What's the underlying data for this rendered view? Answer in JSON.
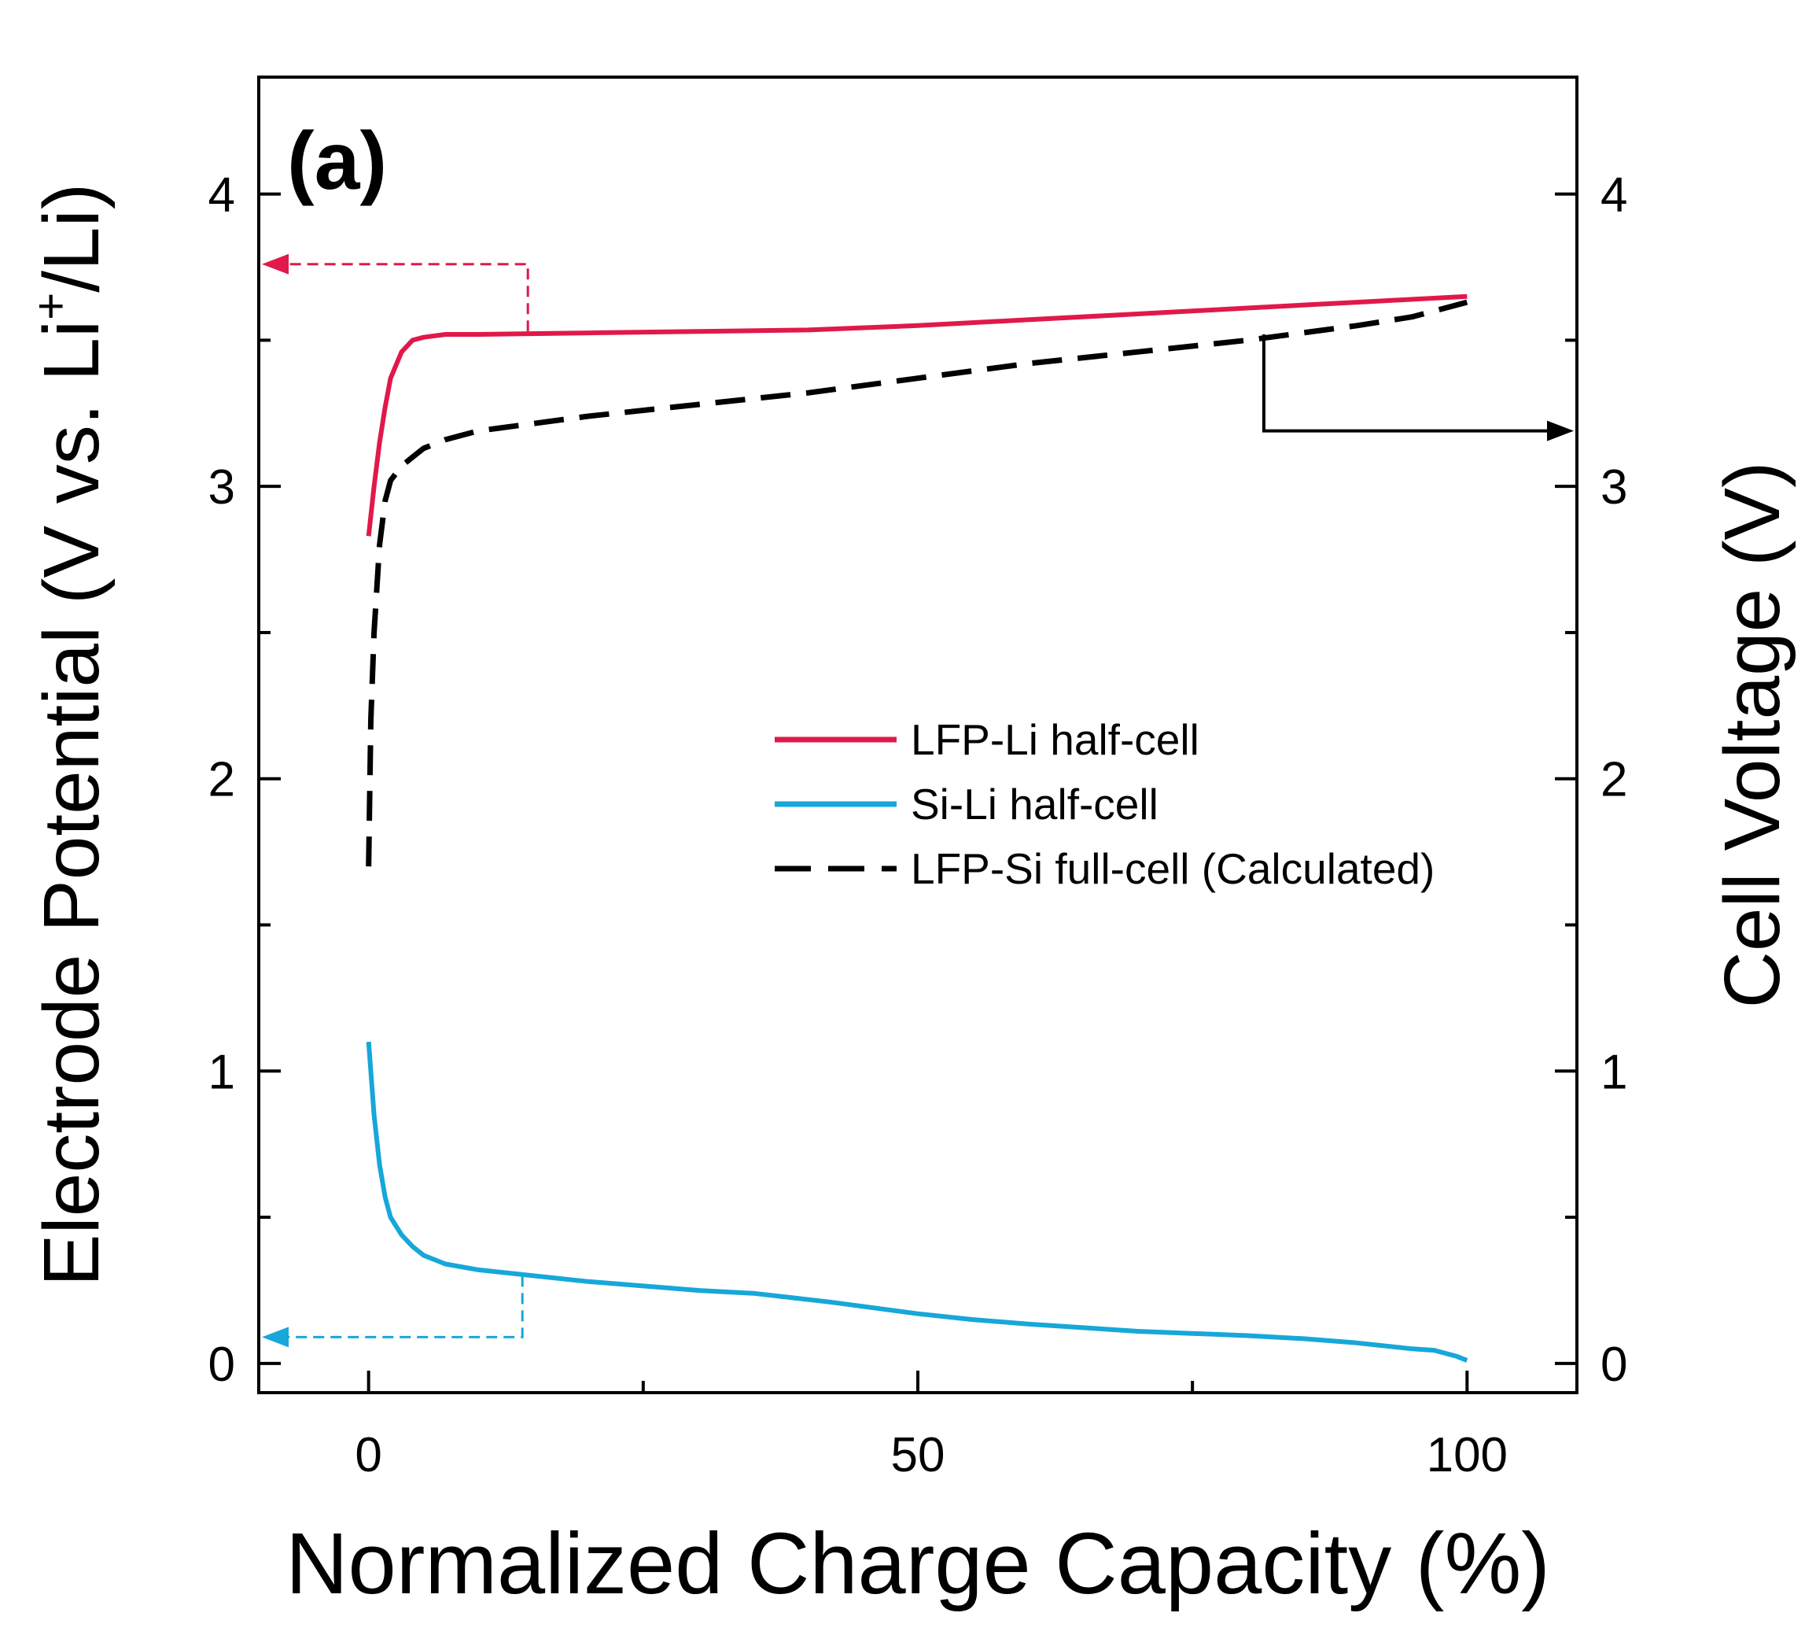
{
  "chart_data": {
    "type": "line",
    "panel_label": "(a)",
    "xlabel": "Normalized Charge Capacity (%)",
    "ylabel_left": "Electrode Potential (V vs. Li+/Li)",
    "ylabel_left_parts": {
      "pre": "Electrode Potential (V vs. Li",
      "sup": "+",
      "post": "/Li)"
    },
    "ylabel_right": "Cell Voltage (V)",
    "xlim": [
      -10,
      110
    ],
    "ylim": [
      -0.1,
      4.4
    ],
    "xticks": [
      0,
      50,
      100
    ],
    "xticks_minor": [
      25,
      75
    ],
    "yticks": [
      0,
      1,
      2,
      3,
      4
    ],
    "yticks_minor": [
      0.5,
      1.5,
      2.5,
      3.5
    ],
    "grid": false,
    "legend_position": "center-right",
    "series": [
      {
        "name": "LFP-Li half-cell",
        "color": "#e0194b",
        "dash": "solid",
        "axis": "left",
        "x": [
          0,
          0.5,
          1,
          1.5,
          2,
          3,
          4,
          5,
          7,
          10,
          20,
          30,
          40,
          50,
          60,
          70,
          80,
          90,
          100
        ],
        "y": [
          2.83,
          3.0,
          3.15,
          3.27,
          3.37,
          3.46,
          3.5,
          3.51,
          3.52,
          3.52,
          3.525,
          3.53,
          3.535,
          3.55,
          3.57,
          3.59,
          3.61,
          3.63,
          3.65
        ]
      },
      {
        "name": "Si-Li half-cell",
        "color": "#17a7d9",
        "dash": "solid",
        "axis": "left",
        "x": [
          0,
          0.5,
          1,
          1.5,
          2,
          3,
          4,
          5,
          7,
          10,
          15,
          20,
          30,
          35,
          42,
          50,
          55,
          60,
          70,
          80,
          85,
          90,
          95,
          97,
          99,
          100
        ],
        "y": [
          1.1,
          0.85,
          0.68,
          0.57,
          0.5,
          0.44,
          0.4,
          0.37,
          0.34,
          0.32,
          0.3,
          0.28,
          0.25,
          0.24,
          0.21,
          0.17,
          0.15,
          0.135,
          0.11,
          0.095,
          0.085,
          0.07,
          0.05,
          0.045,
          0.025,
          0.01
        ]
      },
      {
        "name": "LFP-Si full-cell (Calculated)",
        "color": "#000000",
        "dash": "dashed",
        "axis": "right",
        "x": [
          0,
          0.2,
          0.5,
          1,
          1.5,
          2,
          3,
          4,
          5,
          7,
          10,
          20,
          30,
          40,
          50,
          60,
          70,
          80,
          90,
          95,
          100
        ],
        "y": [
          1.7,
          2.2,
          2.5,
          2.8,
          2.95,
          3.02,
          3.07,
          3.1,
          3.13,
          3.16,
          3.19,
          3.24,
          3.28,
          3.32,
          3.37,
          3.42,
          3.46,
          3.5,
          3.55,
          3.58,
          3.63
        ]
      }
    ],
    "annotations": [
      {
        "type": "arrow",
        "color": "#e0194b",
        "dash": "dashed",
        "points": [
          [
            14.5,
            3.53
          ],
          [
            14.5,
            3.76
          ],
          [
            -10,
            3.76
          ]
        ],
        "meaning": "points to left axis"
      },
      {
        "type": "arrow",
        "color": "#17a7d9",
        "dash": "dashed",
        "points": [
          [
            14,
            0.3
          ],
          [
            14,
            0.09
          ],
          [
            -10,
            0.09
          ]
        ],
        "meaning": "points to left axis"
      },
      {
        "type": "arrow",
        "color": "#000000",
        "dash": "solid",
        "points": [
          [
            81.5,
            3.52
          ],
          [
            81.5,
            3.19
          ],
          [
            110,
            3.19
          ]
        ],
        "meaning": "points to right axis"
      }
    ]
  }
}
